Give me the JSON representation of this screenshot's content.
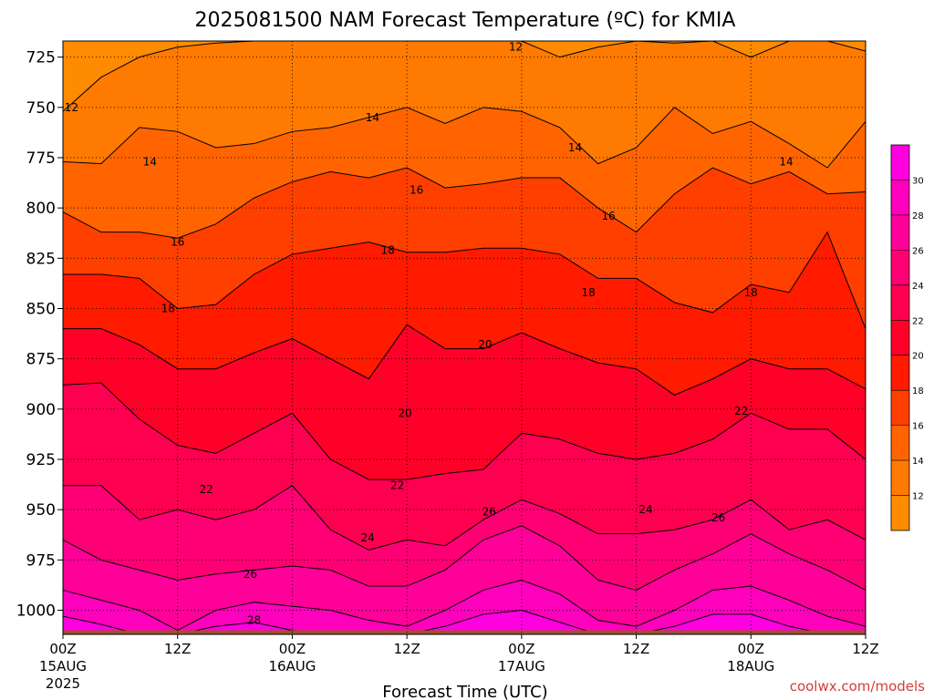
{
  "chart_data": {
    "type": "heatmap",
    "title": "2025081500 NAM Forecast Temperature (ºC) for KMIA",
    "xlabel": "Forecast Time (UTC)",
    "credit": "coolwx.com/models",
    "x_unit": "forecast hour",
    "xlim": [
      0,
      84
    ],
    "x_ticks": [
      {
        "x": 0,
        "label": "00Z",
        "date": "15AUG",
        "year": "2025"
      },
      {
        "x": 12,
        "label": "12Z"
      },
      {
        "x": 24,
        "label": "00Z",
        "date": "16AUG"
      },
      {
        "x": 36,
        "label": "12Z"
      },
      {
        "x": 48,
        "label": "00Z",
        "date": "17AUG"
      },
      {
        "x": 60,
        "label": "12Z"
      },
      {
        "x": 72,
        "label": "00Z",
        "date": "18AUG"
      },
      {
        "x": 84,
        "label": "12Z"
      }
    ],
    "y_unit": "hPa",
    "ylim": [
      1012,
      717
    ],
    "y_ticks": [
      725,
      750,
      775,
      800,
      825,
      850,
      875,
      900,
      925,
      950,
      975,
      1000
    ],
    "grid": "dotted",
    "colorbar": {
      "position": "right",
      "ticks": [
        12,
        14,
        16,
        18,
        20,
        22,
        24,
        26,
        28,
        30
      ],
      "levels": [
        {
          "min": 10,
          "max": 12,
          "color": "#ff8c00"
        },
        {
          "min": 12,
          "max": 14,
          "color": "#ff7a00"
        },
        {
          "min": 14,
          "max": 16,
          "color": "#ff6400"
        },
        {
          "min": 16,
          "max": 18,
          "color": "#ff3f00"
        },
        {
          "min": 18,
          "max": 20,
          "color": "#ff1a00"
        },
        {
          "min": 20,
          "max": 22,
          "color": "#ff0028"
        },
        {
          "min": 22,
          "max": 24,
          "color": "#ff0050"
        },
        {
          "min": 24,
          "max": 26,
          "color": "#ff0074"
        },
        {
          "min": 26,
          "max": 28,
          "color": "#ff0098"
        },
        {
          "min": 28,
          "max": 30,
          "color": "#ff00bc"
        },
        {
          "min": 30,
          "max": 32,
          "color": "#ff00e0"
        }
      ]
    },
    "terrain_color": "#a0522d",
    "terrain_pressure": 1010,
    "contour_hours": [
      0,
      4,
      8,
      12,
      16,
      20,
      24,
      28,
      32,
      36,
      40,
      44,
      48,
      52,
      56,
      60,
      64,
      68,
      72,
      76,
      80,
      84
    ],
    "isotherms": [
      {
        "value": 12,
        "p": [
          752,
          735,
          725,
          720,
          718,
          717,
          717,
          717,
          717,
          717,
          717,
          717,
          717,
          725,
          720,
          717,
          718,
          717,
          725,
          717,
          717,
          722
        ]
      },
      {
        "value": 14,
        "p": [
          777,
          778,
          760,
          762,
          770,
          768,
          762,
          760,
          755,
          750,
          758,
          750,
          752,
          760,
          778,
          770,
          750,
          763,
          757,
          768,
          780,
          757
        ]
      },
      {
        "value": 16,
        "p": [
          802,
          812,
          812,
          815,
          808,
          795,
          787,
          782,
          785,
          780,
          790,
          788,
          785,
          785,
          800,
          812,
          793,
          780,
          788,
          782,
          793,
          792
        ]
      },
      {
        "value": 18,
        "p": [
          833,
          833,
          835,
          850,
          848,
          833,
          823,
          820,
          817,
          822,
          822,
          820,
          820,
          823,
          835,
          835,
          847,
          852,
          838,
          842,
          812,
          860
        ]
      },
      {
        "value": 20,
        "p": [
          860,
          860,
          868,
          880,
          880,
          872,
          865,
          875,
          885,
          858,
          870,
          870,
          862,
          870,
          877,
          880,
          893,
          885,
          875,
          880,
          880,
          890
        ]
      },
      {
        "value": 22,
        "p": [
          888,
          887,
          905,
          918,
          922,
          912,
          902,
          925,
          935,
          935,
          932,
          930,
          912,
          915,
          922,
          925,
          922,
          915,
          902,
          910,
          910,
          925
        ]
      },
      {
        "value": 24,
        "p": [
          938,
          938,
          955,
          950,
          955,
          950,
          938,
          960,
          970,
          965,
          968,
          955,
          945,
          952,
          962,
          962,
          960,
          955,
          945,
          960,
          955,
          965
        ]
      },
      {
        "value": 26,
        "p": [
          965,
          975,
          980,
          985,
          982,
          980,
          978,
          980,
          988,
          988,
          980,
          965,
          958,
          968,
          985,
          990,
          980,
          972,
          962,
          972,
          980,
          990
        ]
      },
      {
        "value": 28,
        "p": [
          990,
          995,
          1000,
          1010,
          1000,
          996,
          998,
          1000,
          1005,
          1008,
          1000,
          990,
          985,
          992,
          1005,
          1008,
          1000,
          990,
          988,
          995,
          1003,
          1008
        ]
      },
      {
        "value": 30,
        "p": [
          1003,
          1007,
          1012,
          1012,
          1008,
          1006,
          1010,
          1012,
          1012,
          1012,
          1008,
          1002,
          1000,
          1006,
          1012,
          1012,
          1008,
          1002,
          1002,
          1008,
          1012,
          1012
        ]
      }
    ],
    "contour_labels": [
      {
        "text": "12",
        "x": 0.9,
        "p": 750
      },
      {
        "text": "12",
        "x": 47.4,
        "p": 720
      },
      {
        "text": "14",
        "x": 9.1,
        "p": 777
      },
      {
        "text": "14",
        "x": 32.4,
        "p": 755
      },
      {
        "text": "14",
        "x": 53.6,
        "p": 770
      },
      {
        "text": "14",
        "x": 75.7,
        "p": 777
      },
      {
        "text": "16",
        "x": 12.0,
        "p": 817
      },
      {
        "text": "16",
        "x": 37.0,
        "p": 791
      },
      {
        "text": "16",
        "x": 57.1,
        "p": 804
      },
      {
        "text": "18",
        "x": 11.0,
        "p": 850
      },
      {
        "text": "18",
        "x": 34.0,
        "p": 821
      },
      {
        "text": "18",
        "x": 55.0,
        "p": 842
      },
      {
        "text": "18",
        "x": 72.0,
        "p": 842
      },
      {
        "text": "20",
        "x": 35.8,
        "p": 902
      },
      {
        "text": "20",
        "x": 44.2,
        "p": 868
      },
      {
        "text": "22",
        "x": 15.0,
        "p": 940
      },
      {
        "text": "22",
        "x": 35.0,
        "p": 938
      },
      {
        "text": "22",
        "x": 71.0,
        "p": 901
      },
      {
        "text": "24",
        "x": 31.9,
        "p": 964
      },
      {
        "text": "24",
        "x": 61.0,
        "p": 950
      },
      {
        "text": "26",
        "x": 19.6,
        "p": 982
      },
      {
        "text": "26",
        "x": 44.6,
        "p": 951
      },
      {
        "text": "26",
        "x": 68.6,
        "p": 954
      },
      {
        "text": "28",
        "x": 20.0,
        "p": 1005
      }
    ]
  }
}
